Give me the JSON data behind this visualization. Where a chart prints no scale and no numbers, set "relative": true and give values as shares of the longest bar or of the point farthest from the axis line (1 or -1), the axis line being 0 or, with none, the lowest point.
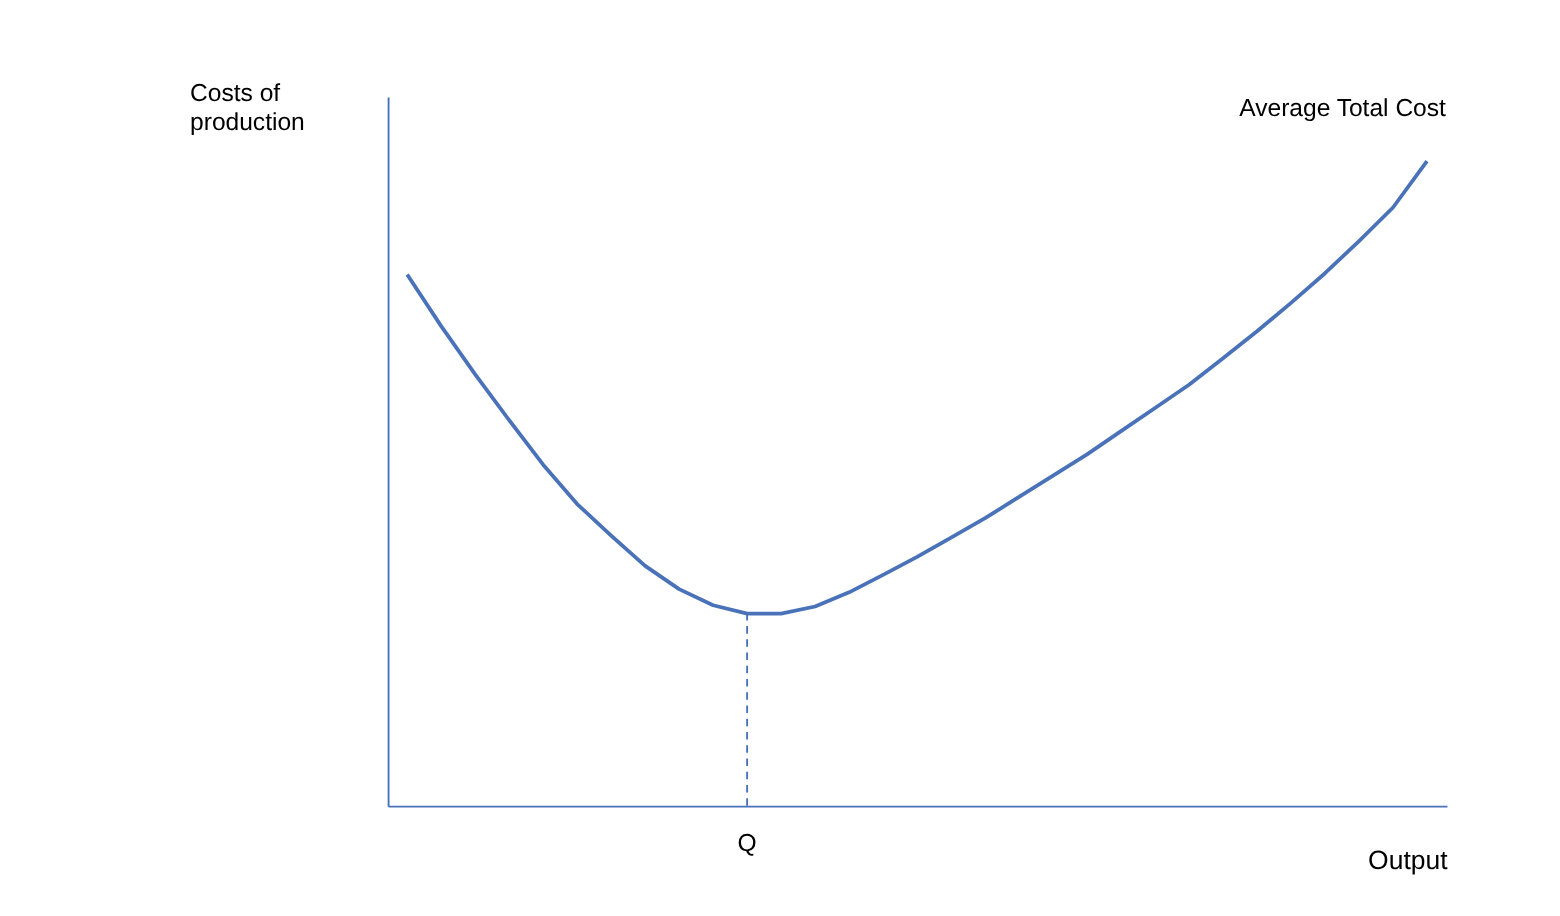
{
  "chart_data": {
    "type": "line",
    "relative": true,
    "xlabel": "Output",
    "ylabel": "Costs of production",
    "categories": [
      null,
      null,
      null,
      null,
      null,
      null,
      null,
      null,
      null,
      null,
      null,
      null,
      null,
      null,
      null,
      null,
      null,
      null,
      null,
      null,
      null,
      null,
      null,
      null,
      null,
      null,
      null,
      null,
      null,
      null,
      null
    ],
    "series": [
      {
        "name": "Average Total Cost",
        "color": "#4a72b8",
        "values": [
          0.824,
          0.744,
          0.669,
          0.598,
          0.529,
          0.468,
          0.419,
          0.372,
          0.336,
          0.311,
          0.298,
          0.298,
          0.309,
          0.331,
          0.358,
          0.386,
          0.416,
          0.446,
          0.479,
          0.512,
          0.545,
          0.581,
          0.617,
          0.653,
          0.694,
          0.736,
          0.78,
          0.826,
          0.876,
          0.928,
          1.0
        ]
      }
    ],
    "annotations": [
      {
        "text": "Q",
        "y": 0.298
      }
    ],
    "grid": false,
    "legend": false,
    "marker": "none",
    "line_style": "solid"
  }
}
